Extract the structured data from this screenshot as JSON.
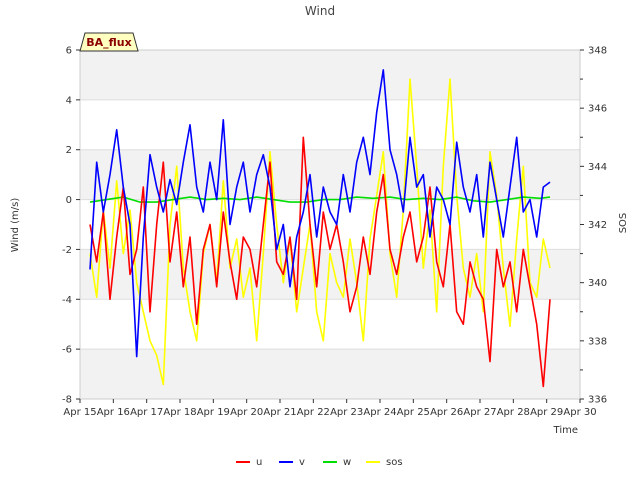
{
  "chart_data": {
    "type": "line",
    "title": "Wind",
    "badge": "BA_flux",
    "xlabel": "Time",
    "ylabel": "Wind (m/s)",
    "y2label": "SOS",
    "xlim": [
      15,
      30
    ],
    "ylim": [
      -8,
      6
    ],
    "y2lim": [
      336,
      348
    ],
    "x_ticks": [
      {
        "v": 15,
        "label": "Apr 15"
      },
      {
        "v": 16,
        "label": "Apr 16"
      },
      {
        "v": 17,
        "label": "Apr 17"
      },
      {
        "v": 18,
        "label": "Apr 18"
      },
      {
        "v": 19,
        "label": "Apr 19"
      },
      {
        "v": 20,
        "label": "Apr 20"
      },
      {
        "v": 21,
        "label": "Apr 21"
      },
      {
        "v": 22,
        "label": "Apr 22"
      },
      {
        "v": 23,
        "label": "Apr 23"
      },
      {
        "v": 24,
        "label": "Apr 24"
      },
      {
        "v": 25,
        "label": "Apr 25"
      },
      {
        "v": 26,
        "label": "Apr 26"
      },
      {
        "v": 27,
        "label": "Apr 27"
      },
      {
        "v": 28,
        "label": "Apr 28"
      },
      {
        "v": 29,
        "label": "Apr 29"
      },
      {
        "v": 30,
        "label": "Apr 30"
      }
    ],
    "y_ticks": [
      {
        "v": 6,
        "label": "6"
      },
      {
        "v": 4,
        "label": "4"
      },
      {
        "v": 2,
        "label": "2"
      },
      {
        "v": 0,
        "label": "0"
      },
      {
        "v": -2,
        "label": "-2"
      },
      {
        "v": -4,
        "label": "-4"
      },
      {
        "v": -6,
        "label": "-6"
      },
      {
        "v": -8,
        "label": "-8"
      }
    ],
    "y2_ticks": [
      {
        "v": 348,
        "label": "348"
      },
      {
        "v": 346,
        "label": "346"
      },
      {
        "v": 344,
        "label": "344"
      },
      {
        "v": 342,
        "label": "342"
      },
      {
        "v": 340,
        "label": "340"
      },
      {
        "v": 338,
        "label": "338"
      },
      {
        "v": 336,
        "label": "336"
      }
    ],
    "grid_bands": [
      [
        4,
        6
      ],
      [
        0,
        2
      ],
      [
        -4,
        -2
      ],
      [
        -8,
        -6
      ]
    ],
    "legend_position": "bottom-center",
    "series": [
      {
        "name": "u",
        "color": "#ff0000",
        "axis": "left",
        "x": [
          15.3,
          15.5,
          15.7,
          15.9,
          16.1,
          16.3,
          16.5,
          16.7,
          16.9,
          17.1,
          17.3,
          17.5,
          17.7,
          17.9,
          18.1,
          18.3,
          18.5,
          18.7,
          18.9,
          19.1,
          19.3,
          19.5,
          19.7,
          19.9,
          20.1,
          20.3,
          20.5,
          20.7,
          20.9,
          21.1,
          21.3,
          21.5,
          21.7,
          21.9,
          22.1,
          22.3,
          22.5,
          22.7,
          22.9,
          23.1,
          23.3,
          23.5,
          23.7,
          23.9,
          24.1,
          24.3,
          24.5,
          24.7,
          24.9,
          25.1,
          25.3,
          25.5,
          25.7,
          25.9,
          26.1,
          26.3,
          26.5,
          26.7,
          26.9,
          27.1,
          27.3,
          27.5,
          27.7,
          27.9,
          28.1,
          28.3,
          28.5,
          28.7,
          28.9,
          29.1
        ],
        "y": [
          -1.0,
          -2.5,
          -0.5,
          -4.0,
          -1.5,
          0.5,
          -3.0,
          -2.0,
          0.5,
          -4.5,
          -1.0,
          1.5,
          -2.5,
          -0.5,
          -3.5,
          -1.5,
          -5.0,
          -2.0,
          -1.0,
          -3.5,
          -0.5,
          -2.5,
          -4.0,
          -1.5,
          -2.0,
          -3.5,
          -1.0,
          1.5,
          -2.5,
          -3.0,
          -1.5,
          -4.0,
          2.5,
          -1.0,
          -3.5,
          -0.5,
          -2.0,
          -1.0,
          -2.5,
          -4.5,
          -3.5,
          -1.5,
          -3.0,
          -0.5,
          1.0,
          -2.0,
          -3.0,
          -1.5,
          -0.5,
          -2.5,
          -1.5,
          0.5,
          -2.5,
          -3.5,
          -1.0,
          -4.5,
          -5.0,
          -2.5,
          -3.5,
          -4.0,
          -6.5,
          -2.0,
          -3.5,
          -2.5,
          -4.5,
          -2.0,
          -3.5,
          -5.0,
          -7.5,
          -4.0
        ]
      },
      {
        "name": "v",
        "color": "#0000ff",
        "axis": "left",
        "x": [
          15.3,
          15.5,
          15.7,
          15.9,
          16.1,
          16.3,
          16.5,
          16.7,
          16.9,
          17.1,
          17.3,
          17.5,
          17.7,
          17.9,
          18.1,
          18.3,
          18.5,
          18.7,
          18.9,
          19.1,
          19.3,
          19.5,
          19.7,
          19.9,
          20.1,
          20.3,
          20.5,
          20.7,
          20.9,
          21.1,
          21.3,
          21.5,
          21.7,
          21.9,
          22.1,
          22.3,
          22.5,
          22.7,
          22.9,
          23.1,
          23.3,
          23.5,
          23.7,
          23.9,
          24.1,
          24.3,
          24.5,
          24.7,
          24.9,
          25.1,
          25.3,
          25.5,
          25.7,
          25.9,
          26.1,
          26.3,
          26.5,
          26.7,
          26.9,
          27.1,
          27.3,
          27.5,
          27.7,
          27.9,
          28.1,
          28.3,
          28.5,
          28.7,
          28.9,
          29.1
        ],
        "y": [
          -2.8,
          1.5,
          -0.5,
          1.0,
          2.8,
          0.5,
          -1.0,
          -6.3,
          -1.5,
          1.8,
          0.5,
          -0.5,
          0.8,
          -0.2,
          1.5,
          3.0,
          0.5,
          -0.5,
          1.5,
          0.0,
          3.2,
          -1.0,
          0.5,
          1.5,
          -0.5,
          1.0,
          1.8,
          0.5,
          -2.0,
          -1.0,
          -3.5,
          -1.5,
          -0.5,
          1.0,
          -1.5,
          0.5,
          -0.5,
          -1.0,
          1.0,
          -0.5,
          1.5,
          2.5,
          1.0,
          3.5,
          5.2,
          2.0,
          1.0,
          -0.5,
          2.5,
          0.5,
          1.0,
          -1.5,
          0.5,
          0.0,
          -1.0,
          2.3,
          0.5,
          -0.5,
          1.0,
          -1.5,
          1.5,
          0.0,
          -1.5,
          0.5,
          2.5,
          -0.5,
          0.0,
          -1.5,
          0.5,
          0.7
        ]
      },
      {
        "name": "w",
        "color": "#00dd00",
        "axis": "left",
        "x": [
          15.3,
          15.8,
          16.3,
          16.8,
          17.3,
          17.8,
          18.3,
          18.8,
          19.3,
          19.8,
          20.3,
          20.8,
          21.3,
          21.8,
          22.3,
          22.8,
          23.3,
          23.8,
          24.3,
          24.8,
          25.3,
          25.8,
          26.3,
          26.8,
          27.3,
          27.8,
          28.3,
          28.8,
          29.1
        ],
        "y": [
          -0.1,
          0.0,
          0.1,
          -0.1,
          -0.1,
          0.0,
          0.1,
          0.0,
          0.05,
          0.0,
          0.1,
          0.0,
          -0.1,
          -0.1,
          0.0,
          0.0,
          0.1,
          0.05,
          0.1,
          0.0,
          0.05,
          0.0,
          0.1,
          -0.05,
          -0.1,
          0.0,
          0.1,
          0.05,
          0.1
        ]
      },
      {
        "name": "sos",
        "color": "#ffff00",
        "axis": "right",
        "x": [
          15.3,
          15.5,
          15.7,
          15.9,
          16.1,
          16.3,
          16.5,
          16.7,
          16.9,
          17.1,
          17.3,
          17.5,
          17.7,
          17.9,
          18.1,
          18.3,
          18.5,
          18.7,
          18.9,
          19.1,
          19.3,
          19.5,
          19.7,
          19.9,
          20.1,
          20.3,
          20.5,
          20.7,
          20.9,
          21.1,
          21.3,
          21.5,
          21.7,
          21.9,
          22.1,
          22.3,
          22.5,
          22.7,
          22.9,
          23.1,
          23.3,
          23.5,
          23.7,
          23.9,
          24.1,
          24.3,
          24.5,
          24.7,
          24.9,
          25.1,
          25.3,
          25.5,
          25.7,
          25.9,
          26.1,
          26.3,
          26.5,
          26.7,
          26.9,
          27.1,
          27.3,
          27.5,
          27.7,
          27.9,
          28.1,
          28.3,
          28.5,
          28.7,
          28.9,
          29.1
        ],
        "y": [
          341.0,
          339.5,
          342.5,
          340.5,
          343.5,
          341.0,
          342.5,
          340.0,
          339.0,
          338.0,
          337.5,
          336.5,
          342.0,
          344.0,
          340.5,
          339.0,
          338.0,
          341.0,
          342.0,
          340.0,
          343.5,
          340.5,
          341.5,
          339.5,
          340.5,
          338.0,
          341.0,
          344.5,
          342.0,
          340.0,
          341.5,
          339.0,
          340.5,
          342.0,
          339.0,
          338.0,
          341.0,
          340.0,
          339.5,
          341.5,
          340.0,
          338.0,
          341.5,
          343.0,
          344.5,
          341.0,
          339.5,
          342.5,
          347.0,
          344.0,
          340.5,
          342.5,
          339.0,
          344.0,
          347.0,
          343.0,
          340.5,
          339.5,
          341.0,
          339.0,
          344.5,
          343.0,
          340.5,
          338.5,
          341.5,
          344.0,
          340.0,
          339.5,
          341.5,
          340.5
        ]
      }
    ]
  }
}
